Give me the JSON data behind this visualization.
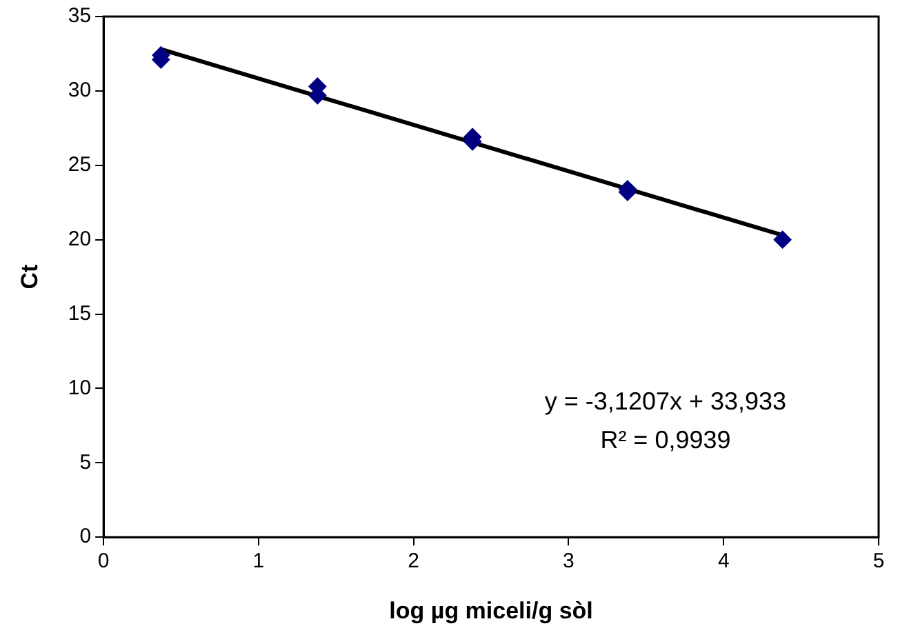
{
  "chart_data": {
    "type": "scatter",
    "xlabel": "log µg miceli/g sòl",
    "ylabel": "Ct",
    "xlim": [
      0,
      5
    ],
    "xticks": [
      0,
      1,
      2,
      3,
      4,
      5
    ],
    "ylim": [
      0,
      35
    ],
    "yticks": [
      0,
      5,
      10,
      15,
      20,
      25,
      30,
      35
    ],
    "grid": false,
    "legend": false,
    "series": [
      {
        "type": "scatter",
        "color": "#000080",
        "marker": "diamond",
        "x": [
          0.37,
          0.37,
          1.38,
          1.38,
          2.38,
          2.38,
          3.38,
          3.38,
          4.38
        ],
        "values": [
          32.4,
          32.1,
          30.3,
          29.7,
          26.9,
          26.6,
          23.4,
          23.2,
          20.0
        ]
      },
      {
        "type": "line",
        "color": "#000000",
        "marker": "none",
        "line_style": "solid",
        "x": [
          0.37,
          4.38
        ],
        "values": [
          32.8,
          20.3
        ]
      }
    ],
    "annotations": [
      "y = -3,1207x + 33,933",
      "R² = 0,9939"
    ]
  }
}
